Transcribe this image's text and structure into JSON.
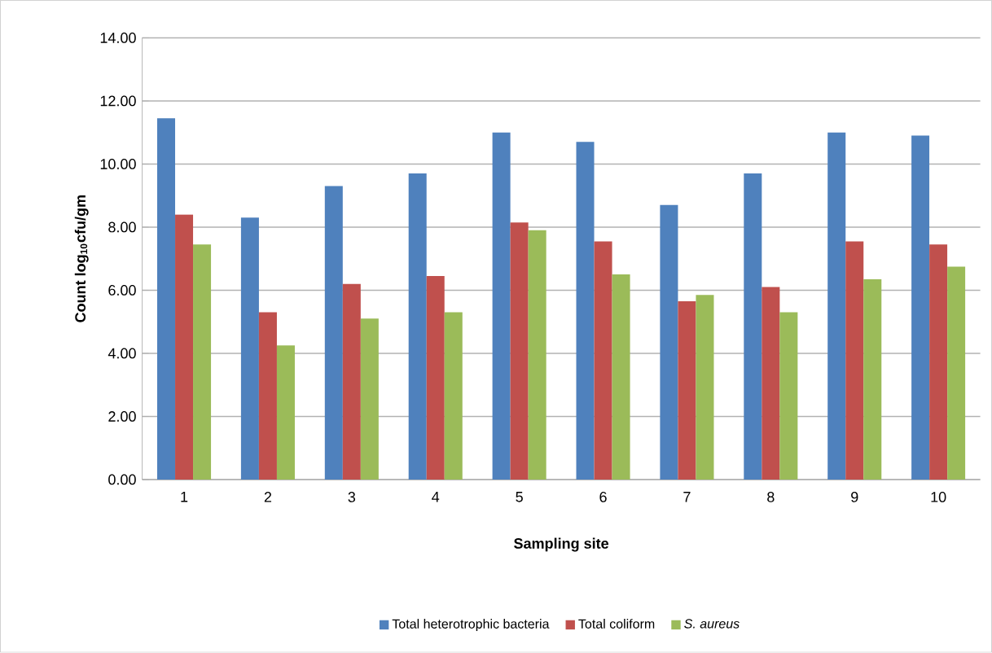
{
  "chart_data": {
    "type": "bar",
    "xlabel": "Sampling site",
    "ylabel": "Count log$_{10}$cfu/gm",
    "categories": [
      "1",
      "2",
      "3",
      "4",
      "5",
      "6",
      "7",
      "8",
      "9",
      "10"
    ],
    "series": [
      {
        "name": "Total heterotrophic bacteria",
        "color": "#4f81bd",
        "values": [
          11.45,
          8.3,
          9.3,
          9.7,
          11.0,
          10.7,
          8.7,
          9.7,
          11.0,
          10.9
        ]
      },
      {
        "name": "Total coliform",
        "color": "#c0504d",
        "values": [
          8.4,
          5.3,
          6.2,
          6.45,
          8.15,
          7.55,
          5.65,
          6.1,
          7.55,
          7.45
        ]
      },
      {
        "name": "*S. aureus*",
        "color": "#9bbb59",
        "values": [
          7.45,
          4.25,
          5.1,
          5.3,
          7.9,
          6.5,
          5.85,
          5.3,
          6.35,
          6.75
        ]
      }
    ],
    "ylim": [
      0,
      14
    ],
    "yticks": [
      {
        "value": 0,
        "label": "0.00"
      },
      {
        "value": 2,
        "label": "2.00"
      },
      {
        "value": 4,
        "label": "4.00"
      },
      {
        "value": 6,
        "label": "6.00"
      },
      {
        "value": 8,
        "label": "8.00"
      },
      {
        "value": 10,
        "label": "10.00"
      },
      {
        "value": 12,
        "label": "12.00"
      },
      {
        "value": 14,
        "label": "14.00"
      }
    ],
    "grid": "y",
    "legend": "bottom"
  }
}
